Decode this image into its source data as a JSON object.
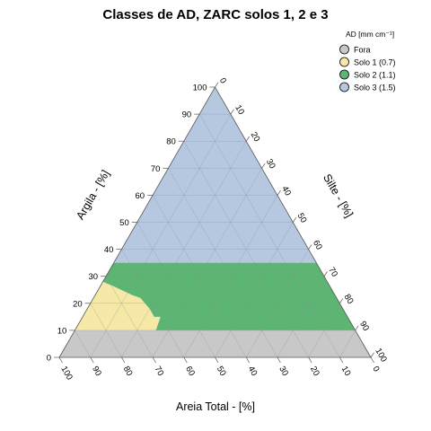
{
  "chart_data": {
    "type": "ternary",
    "title": "Classes de AD, ZARC solos 1, 2 e 3",
    "axes": {
      "clay": {
        "label": "Argila - [%]",
        "ticks": [
          0,
          10,
          20,
          30,
          40,
          50,
          60,
          70,
          80,
          90,
          100
        ]
      },
      "silt": {
        "label": "Silte - [%]",
        "ticks": [
          0,
          10,
          20,
          30,
          40,
          50,
          60,
          70,
          80,
          90,
          100
        ]
      },
      "sand": {
        "label": "Areia Total - [%]",
        "ticks": [
          100,
          90,
          80,
          70,
          60,
          50,
          40,
          30,
          20,
          10,
          0
        ]
      }
    },
    "legend": {
      "title": "AD [mm cm⁻¹]",
      "position": "top-right",
      "entries": [
        {
          "label": "Fora",
          "color": "#c8c8c8"
        },
        {
          "label": "Solo 1 (0.7)",
          "color": "#f6e8a6"
        },
        {
          "label": "Solo 2 (1.1)",
          "color": "#5db574"
        },
        {
          "label": "Solo 3 (1.5)",
          "color": "#b5c8e0"
        }
      ]
    },
    "regions": [
      {
        "name": "Fora",
        "color": "#c8c8c8",
        "clay_range": [
          0,
          10
        ]
      },
      {
        "name": "Solo 1 (0.7)",
        "color": "#f6e8a6",
        "clay_range": [
          10,
          35
        ],
        "sand_ge": 50
      },
      {
        "name": "Solo 2 (1.1)",
        "color": "#5db574",
        "clay_range": [
          10,
          35
        ],
        "sand_lt": 50
      },
      {
        "name": "Solo 3 (1.5)",
        "color": "#b5c8e0",
        "clay_range": [
          35,
          100
        ]
      }
    ],
    "grid": true
  }
}
